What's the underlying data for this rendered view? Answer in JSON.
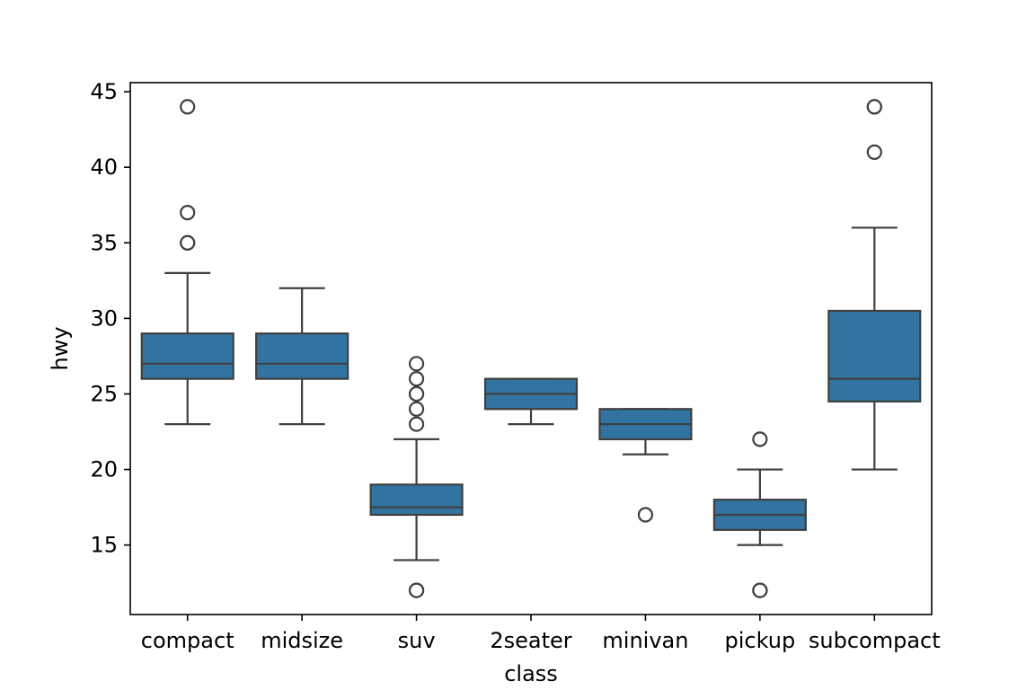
{
  "chart_data": {
    "type": "box",
    "title": "",
    "xlabel": "class",
    "ylabel": "hwy",
    "ylim": [
      10.4,
      45.6
    ],
    "yticks": [
      15,
      20,
      25,
      30,
      35,
      40,
      45
    ],
    "grid": false,
    "colors": {
      "box_fill": "#3274a1",
      "line": "#3f3f3f",
      "outlier_fill": "#ffffff"
    },
    "categories": [
      "compact",
      "midsize",
      "suv",
      "2seater",
      "minivan",
      "pickup",
      "subcompact"
    ],
    "boxes": [
      {
        "category": "compact",
        "whisker_low": 23,
        "q1": 26,
        "median": 27,
        "q3": 29,
        "whisker_high": 33,
        "outliers": [
          35,
          35,
          37,
          44
        ]
      },
      {
        "category": "midsize",
        "whisker_low": 23,
        "q1": 26,
        "median": 27,
        "q3": 29,
        "whisker_high": 32,
        "outliers": []
      },
      {
        "category": "suv",
        "whisker_low": 14,
        "q1": 17,
        "median": 17.5,
        "q3": 19,
        "whisker_high": 22,
        "outliers": [
          12,
          12,
          23,
          24,
          25,
          25,
          26,
          27
        ]
      },
      {
        "category": "2seater",
        "whisker_low": 23,
        "q1": 24,
        "median": 25,
        "q3": 26,
        "whisker_high": 26,
        "outliers": []
      },
      {
        "category": "minivan",
        "whisker_low": 21,
        "q1": 22,
        "median": 23,
        "q3": 24,
        "whisker_high": 24,
        "outliers": [
          17
        ]
      },
      {
        "category": "pickup",
        "whisker_low": 15,
        "q1": 16,
        "median": 17,
        "q3": 18,
        "whisker_high": 20,
        "outliers": [
          12,
          12,
          22
        ]
      },
      {
        "category": "subcompact",
        "whisker_low": 20,
        "q1": 24.5,
        "median": 26,
        "q3": 30.5,
        "whisker_high": 36,
        "outliers": [
          41,
          44,
          44
        ]
      }
    ]
  }
}
